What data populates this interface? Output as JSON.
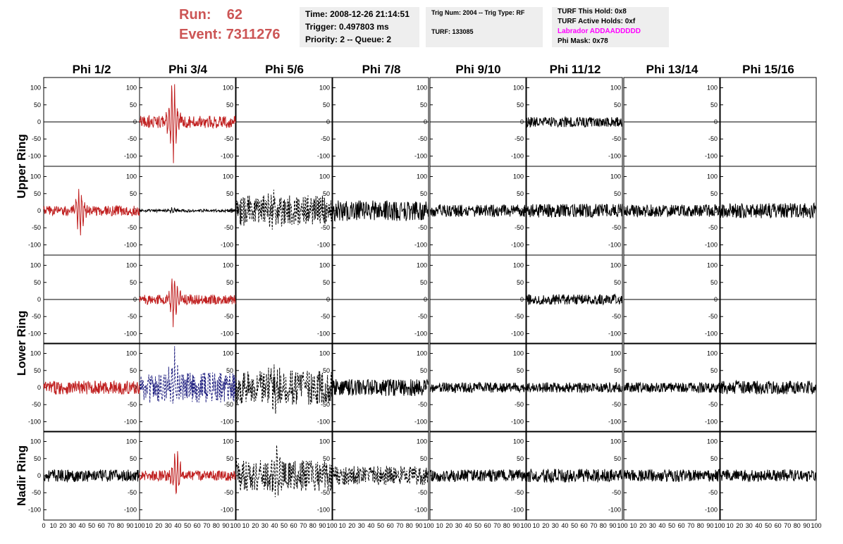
{
  "header": {
    "run_label": "Run:",
    "run_value": "62",
    "event_label": "Event:",
    "event_value": "7311276",
    "time": "Time: 2008-12-26 21:14:51",
    "trigger": "Trigger: 0.497803 ms",
    "priority": "Priority: 2 -- Queue: 2",
    "trig_num": "Trig Num: 2004 -- Trig Type: RF",
    "turf": "TURF: 133085",
    "turf_this_hold": "TURF This Hold: 0x8",
    "turf_active_holds": "TURF Active Holds: 0xf",
    "labrador": "Labrador ADDAADDDDD",
    "phi_mask": "Phi Mask: 0x78"
  },
  "colors": {
    "run_event": "#cc5555",
    "labrador": "#ff00ff",
    "trace_red": "#c02020",
    "trace_blue": "#202080",
    "trace_black": "#000000",
    "info_bg": "#eeeeee"
  },
  "chart_data": {
    "type": "line",
    "columns": [
      "Phi 1/2",
      "Phi 3/4",
      "Phi 5/6",
      "Phi 7/8",
      "Phi 9/10",
      "Phi 11/12",
      "Phi 13/14",
      "Phi 15/16"
    ],
    "rows": [
      "Upper Ring",
      "Lower Ring",
      "Nadir Ring"
    ],
    "xlim": [
      0,
      100
    ],
    "ylim": [
      -130,
      130
    ],
    "y_ticks": [
      -100,
      -50,
      0,
      50,
      100
    ],
    "x_ticks": [
      0,
      10,
      20,
      30,
      40,
      50,
      60,
      70,
      80,
      90,
      100
    ],
    "x_tick_labels_by_column": [
      [
        "0",
        "10",
        "20",
        "30",
        "40",
        "50",
        "60",
        "70",
        "80",
        "90",
        "100"
      ],
      [
        "10",
        "20",
        "30",
        "40",
        "50",
        "60",
        "70",
        "80",
        "90",
        "100"
      ],
      [
        "10",
        "20",
        "30",
        "40",
        "50",
        "60",
        "70",
        "80",
        "90",
        "100"
      ],
      [
        "10",
        "20",
        "30",
        "40",
        "50",
        "60",
        "70",
        "80",
        "90",
        "100"
      ],
      [
        "10",
        "20",
        "30",
        "40",
        "50",
        "60",
        "70",
        "80",
        "90",
        "100"
      ],
      [
        "10",
        "20",
        "30",
        "40",
        "50",
        "60",
        "70",
        "80",
        "90",
        "100"
      ],
      [
        "10",
        "20",
        "30",
        "40",
        "50",
        "60",
        "70",
        "80",
        "90",
        "100"
      ],
      [
        "10",
        "20",
        "30",
        "40",
        "50",
        "60",
        "70",
        "80",
        "90",
        "100"
      ]
    ],
    "panels": [
      [
        {
          "color": "black",
          "style": "solid",
          "amp": 0,
          "pulse_center": 0,
          "pulse_amp": 0
        },
        {
          "color": "red",
          "style": "solid",
          "amp": 18,
          "pulse_center": 35,
          "pulse_amp": 120
        },
        {
          "color": "black",
          "style": "solid",
          "amp": 0,
          "pulse_center": 0,
          "pulse_amp": 0
        },
        {
          "color": "black",
          "style": "solid",
          "amp": 0,
          "pulse_center": 0,
          "pulse_amp": 0
        },
        {
          "color": "black",
          "style": "solid",
          "amp": 0,
          "pulse_center": 0,
          "pulse_amp": 0
        },
        {
          "color": "black",
          "style": "solid",
          "amp": 15,
          "pulse_center": 0,
          "pulse_amp": 0
        },
        {
          "color": "black",
          "style": "solid",
          "amp": 0,
          "pulse_center": 0,
          "pulse_amp": 0
        },
        {
          "color": "black",
          "style": "solid",
          "amp": 0,
          "pulse_center": 0,
          "pulse_amp": 0
        }
      ],
      [
        {
          "color": "red",
          "style": "solid",
          "amp": 15,
          "pulse_center": 38,
          "pulse_amp": 75
        },
        {
          "color": "black",
          "style": "solid",
          "amp": 4,
          "pulse_center": 35,
          "pulse_amp": 8
        },
        {
          "color": "black",
          "style": "dashed",
          "amp": 45,
          "pulse_center": 40,
          "pulse_amp": 70
        },
        {
          "color": "black",
          "style": "solid",
          "amp": 30,
          "pulse_center": 0,
          "pulse_amp": 0
        },
        {
          "color": "black",
          "style": "solid",
          "amp": 18,
          "pulse_center": 0,
          "pulse_amp": 0
        },
        {
          "color": "black",
          "style": "solid",
          "amp": 20,
          "pulse_center": 0,
          "pulse_amp": 0
        },
        {
          "color": "black",
          "style": "solid",
          "amp": 18,
          "pulse_center": 0,
          "pulse_amp": 0
        },
        {
          "color": "black",
          "style": "solid",
          "amp": 22,
          "pulse_center": 0,
          "pulse_amp": 0
        }
      ],
      [
        {
          "color": "black",
          "style": "solid",
          "amp": 0,
          "pulse_center": 0,
          "pulse_amp": 0
        },
        {
          "color": "red",
          "style": "solid",
          "amp": 15,
          "pulse_center": 36,
          "pulse_amp": 85
        },
        {
          "color": "black",
          "style": "solid",
          "amp": 0,
          "pulse_center": 0,
          "pulse_amp": 0
        },
        {
          "color": "black",
          "style": "solid",
          "amp": 0,
          "pulse_center": 0,
          "pulse_amp": 0
        },
        {
          "color": "black",
          "style": "solid",
          "amp": 0,
          "pulse_center": 0,
          "pulse_amp": 0
        },
        {
          "color": "black",
          "style": "solid",
          "amp": 15,
          "pulse_center": 0,
          "pulse_amp": 0
        },
        {
          "color": "black",
          "style": "solid",
          "amp": 0,
          "pulse_center": 0,
          "pulse_amp": 0
        },
        {
          "color": "black",
          "style": "solid",
          "amp": 0,
          "pulse_center": 0,
          "pulse_amp": 0
        }
      ],
      [
        {
          "color": "red",
          "style": "solid",
          "amp": 20,
          "pulse_center": 0,
          "pulse_amp": 0
        },
        {
          "color": "blue",
          "style": "dashed",
          "amp": 45,
          "pulse_center": 35,
          "pulse_amp": 110
        },
        {
          "color": "black",
          "style": "dashed",
          "amp": 50,
          "pulse_center": 40,
          "pulse_amp": 70
        },
        {
          "color": "black",
          "style": "solid",
          "amp": 25,
          "pulse_center": 0,
          "pulse_amp": 0
        },
        {
          "color": "black",
          "style": "solid",
          "amp": 15,
          "pulse_center": 0,
          "pulse_amp": 0
        },
        {
          "color": "black",
          "style": "solid",
          "amp": 15,
          "pulse_center": 0,
          "pulse_amp": 0
        },
        {
          "color": "black",
          "style": "solid",
          "amp": 15,
          "pulse_center": 0,
          "pulse_amp": 0
        },
        {
          "color": "black",
          "style": "solid",
          "amp": 20,
          "pulse_center": 0,
          "pulse_amp": 0
        }
      ],
      [
        {
          "color": "black",
          "style": "solid",
          "amp": 18,
          "pulse_center": 0,
          "pulse_amp": 0
        },
        {
          "color": "red",
          "style": "solid",
          "amp": 15,
          "pulse_center": 38,
          "pulse_amp": 80
        },
        {
          "color": "black",
          "style": "dashed",
          "amp": 45,
          "pulse_center": 42,
          "pulse_amp": 80
        },
        {
          "color": "black",
          "style": "dashed",
          "amp": 28,
          "pulse_center": 0,
          "pulse_amp": 0
        },
        {
          "color": "black",
          "style": "solid",
          "amp": 18,
          "pulse_center": 0,
          "pulse_amp": 0
        },
        {
          "color": "black",
          "style": "solid",
          "amp": 20,
          "pulse_center": 0,
          "pulse_amp": 0
        },
        {
          "color": "black",
          "style": "solid",
          "amp": 18,
          "pulse_center": 0,
          "pulse_amp": 0
        },
        {
          "color": "black",
          "style": "solid",
          "amp": 18,
          "pulse_center": 0,
          "pulse_amp": 0
        }
      ]
    ]
  }
}
